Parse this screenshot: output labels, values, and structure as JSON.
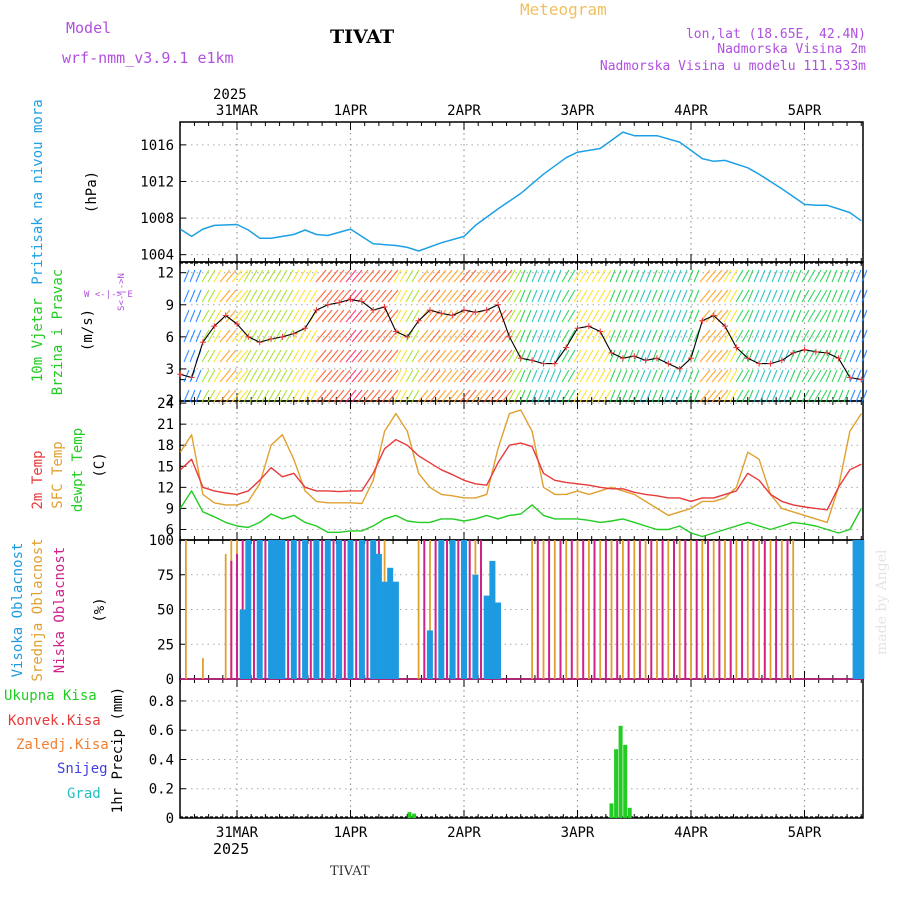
{
  "header": {
    "model_label": "Model",
    "model_name": "wrf-nmm_v3.9.1 e1km",
    "station": "TIVAT",
    "title": "Meteogram",
    "coords": "lon,lat (18.65E, 42.4N)",
    "elevation": "Nadmorska Visina 2m",
    "elevation_model": "Nadmorska Visina u modelu 111.533m",
    "footer_station": "TIVAT",
    "watermark": "made by Angel"
  },
  "time_axis": {
    "year": "2025",
    "labels": [
      "31MAR",
      "1APR",
      "2APR",
      "3APR",
      "4APR",
      "5APR"
    ]
  },
  "colors": {
    "pressure": "#1ea0e6",
    "temp2m": "#e83a3a",
    "sfc_temp": "#e0a030",
    "dewpoint": "#22cc22",
    "cloud_high": "#1e9be0",
    "cloud_mid": "#e0a030",
    "cloud_low": "#d0208a",
    "precip_total": "#22cc22",
    "wind_label": "#22cc22",
    "violet": "#b050e0"
  },
  "chart_data": [
    {
      "type": "line",
      "panel": "pressure",
      "ylabel": "Pritisak na nivou mora",
      "unit": "(hPa)",
      "yticks": [
        "1004",
        "1008",
        "1012",
        "1016"
      ],
      "ylim": [
        1003.2,
        1018.5
      ],
      "x_days": [
        -0.5,
        -0.4,
        -0.3,
        -0.2,
        0.0,
        0.1,
        0.2,
        0.3,
        0.5,
        0.6,
        0.7,
        0.8,
        1.0,
        1.2,
        1.4,
        1.5,
        1.6,
        1.8,
        2.0,
        2.1,
        2.3,
        2.5,
        2.7,
        2.9,
        3.0,
        3.2,
        3.4,
        3.5,
        3.7,
        3.9,
        4.0,
        4.1,
        4.2,
        4.3,
        4.5,
        4.6,
        4.8,
        5.0,
        5.1,
        5.2,
        5.3,
        5.4,
        5.5
      ],
      "series": [
        {
          "name": "Pritisak na nivou mora",
          "values": [
            1006.8,
            1006.0,
            1006.8,
            1007.2,
            1007.3,
            1006.7,
            1005.8,
            1005.8,
            1006.2,
            1006.7,
            1006.2,
            1006.1,
            1006.8,
            1005.2,
            1005.0,
            1004.8,
            1004.4,
            1005.3,
            1006.0,
            1007.2,
            1009.0,
            1010.7,
            1012.8,
            1014.6,
            1015.2,
            1015.6,
            1017.4,
            1017.0,
            1017.0,
            1016.3,
            1015.4,
            1014.5,
            1014.2,
            1014.3,
            1013.5,
            1012.8,
            1011.2,
            1009.5,
            1009.4,
            1009.4,
            1009.0,
            1008.6,
            1007.7
          ]
        }
      ]
    },
    {
      "type": "line",
      "panel": "wind",
      "ylabel": "10m Vjetar",
      "ylabel2": "Brzina i Pravac",
      "unit": "(m/s)",
      "compass": "W <-|-> E",
      "compass_v": "S<-|->N",
      "yticks": [
        "2",
        "3",
        "6",
        "9",
        "12"
      ],
      "ylim": [
        0,
        13
      ],
      "x_days": [
        -0.5,
        -0.4,
        -0.3,
        -0.2,
        -0.1,
        0.0,
        0.1,
        0.2,
        0.3,
        0.4,
        0.5,
        0.6,
        0.7,
        0.8,
        0.9,
        1.0,
        1.1,
        1.2,
        1.3,
        1.4,
        1.5,
        1.6,
        1.7,
        1.8,
        1.9,
        2.0,
        2.1,
        2.2,
        2.3,
        2.4,
        2.5,
        2.6,
        2.7,
        2.8,
        2.9,
        3.0,
        3.1,
        3.2,
        3.3,
        3.4,
        3.5,
        3.6,
        3.7,
        3.8,
        3.9,
        4.0,
        4.1,
        4.2,
        4.3,
        4.4,
        4.5,
        4.6,
        4.7,
        4.8,
        4.9,
        5.0,
        5.1,
        5.2,
        5.3,
        5.4,
        5.5
      ],
      "series": [
        {
          "name": "wind speed",
          "values": [
            2.5,
            2.2,
            5.5,
            7.0,
            8.0,
            7.2,
            6.0,
            5.5,
            5.8,
            6.0,
            6.3,
            6.8,
            8.5,
            9.0,
            9.2,
            9.5,
            9.3,
            8.5,
            8.8,
            6.5,
            6.0,
            7.5,
            8.5,
            8.2,
            8.0,
            8.5,
            8.3,
            8.5,
            9.0,
            6.0,
            4.0,
            3.8,
            3.5,
            3.5,
            5.0,
            6.8,
            7.0,
            6.5,
            4.5,
            4.0,
            4.2,
            3.8,
            4.0,
            3.5,
            3.0,
            4.0,
            7.5,
            8.0,
            7.0,
            5.0,
            4.0,
            3.5,
            3.5,
            3.8,
            4.5,
            4.8,
            4.6,
            4.5,
            4.0,
            2.2,
            2.0
          ]
        }
      ]
    },
    {
      "type": "line",
      "panel": "temperature",
      "ylabel": "2m Temp",
      "ylabel2": "SFC Temp",
      "ylabel3": "dewpt Temp",
      "unit": "(C)",
      "yticks": [
        "6",
        "9",
        "12",
        "15",
        "18",
        "21",
        "24"
      ],
      "ylim": [
        4.5,
        24.3
      ],
      "x_days": [
        -0.5,
        -0.4,
        -0.3,
        -0.2,
        -0.1,
        0.0,
        0.1,
        0.2,
        0.3,
        0.4,
        0.5,
        0.6,
        0.7,
        0.8,
        0.9,
        1.0,
        1.1,
        1.2,
        1.3,
        1.4,
        1.5,
        1.6,
        1.7,
        1.8,
        1.9,
        2.0,
        2.1,
        2.2,
        2.3,
        2.4,
        2.5,
        2.6,
        2.7,
        2.8,
        2.9,
        3.0,
        3.1,
        3.2,
        3.3,
        3.4,
        3.5,
        3.6,
        3.7,
        3.8,
        3.9,
        4.0,
        4.1,
        4.2,
        4.3,
        4.4,
        4.5,
        4.6,
        4.7,
        4.8,
        4.9,
        5.0,
        5.1,
        5.2,
        5.3,
        5.4,
        5.5
      ],
      "series": [
        {
          "name": "2m Temp",
          "values": [
            14.5,
            16.0,
            12.0,
            11.5,
            11.2,
            11.0,
            11.5,
            13.0,
            14.8,
            13.5,
            14.0,
            12.0,
            11.5,
            11.5,
            11.4,
            11.5,
            11.5,
            14.0,
            17.5,
            18.8,
            18.0,
            16.5,
            15.5,
            14.5,
            13.8,
            13.0,
            12.5,
            12.3,
            15.5,
            18.0,
            18.3,
            17.8,
            14.0,
            13.0,
            12.7,
            12.5,
            12.3,
            12.0,
            11.8,
            11.8,
            11.3,
            11.0,
            10.8,
            10.5,
            10.5,
            10.0,
            10.5,
            10.5,
            11.0,
            11.5,
            14.0,
            13.0,
            11.0,
            10.0,
            9.5,
            9.2,
            9.0,
            8.8,
            12.0,
            14.5,
            15.3
          ]
        },
        {
          "name": "SFC Temp",
          "values": [
            17.0,
            19.5,
            11.0,
            9.8,
            9.5,
            9.5,
            10.0,
            12.5,
            18.0,
            19.5,
            16.0,
            11.5,
            10.0,
            9.8,
            9.8,
            9.8,
            9.7,
            13.0,
            20.0,
            22.5,
            20.0,
            14.0,
            12.0,
            11.0,
            10.8,
            10.5,
            10.5,
            11.0,
            17.5,
            22.5,
            23.0,
            20.0,
            12.0,
            11.0,
            11.0,
            11.5,
            11.0,
            11.5,
            12.0,
            11.5,
            11.0,
            10.0,
            9.0,
            8.0,
            8.5,
            9.0,
            10.0,
            10.0,
            10.5,
            12.0,
            17.0,
            16.0,
            11.0,
            9.0,
            8.5,
            8.0,
            7.5,
            7.0,
            12.0,
            20.0,
            22.5
          ]
        },
        {
          "name": "dewpt Temp",
          "values": [
            9.0,
            11.5,
            8.5,
            7.8,
            7.0,
            6.5,
            6.3,
            7.0,
            8.2,
            7.5,
            8.0,
            7.0,
            6.5,
            5.6,
            5.6,
            5.8,
            5.8,
            6.5,
            7.5,
            8.0,
            7.2,
            7.0,
            7.0,
            7.5,
            7.5,
            7.2,
            7.5,
            8.0,
            7.5,
            8.0,
            8.2,
            9.5,
            8.0,
            7.5,
            7.5,
            7.5,
            7.3,
            7.0,
            7.2,
            7.5,
            7.0,
            6.5,
            6.0,
            6.0,
            6.5,
            5.5,
            5.0,
            5.5,
            6.0,
            6.5,
            7.0,
            6.5,
            6.0,
            6.5,
            7.0,
            6.8,
            6.5,
            6.0,
            5.5,
            6.0,
            9.0
          ]
        }
      ]
    },
    {
      "type": "bar",
      "panel": "clouds",
      "ylabel": "Visoka Oblacnost",
      "ylabel2": "Srednja Oblacnost",
      "ylabel3": "Niska Oblacnost",
      "unit": "(%)",
      "yticks": [
        "0",
        "25",
        "50",
        "75",
        "100"
      ],
      "ylim": [
        0,
        100
      ],
      "series": [
        {
          "name": "Visoka Oblacnost",
          "x_days": [
            0.05,
            0.1,
            0.2,
            0.3,
            0.35,
            0.4,
            0.5,
            0.6,
            0.7,
            0.8,
            0.9,
            1.0,
            1.1,
            1.2,
            1.25,
            1.3,
            1.35,
            1.4,
            1.7,
            1.8,
            1.9,
            2.0,
            2.1,
            2.2,
            2.25,
            2.3,
            5.45,
            5.5
          ],
          "values": [
            50,
            100,
            100,
            100,
            100,
            100,
            100,
            100,
            100,
            100,
            100,
            100,
            100,
            100,
            90,
            70,
            80,
            70,
            35,
            100,
            100,
            100,
            75,
            60,
            85,
            55,
            100,
            100
          ]
        },
        {
          "name": "Srednja Oblacnost",
          "x_days": [
            -0.45,
            -0.3,
            -0.1,
            -0.05,
            0.0,
            0.1,
            0.2,
            0.3,
            0.4,
            0.5,
            0.6,
            0.7,
            0.8,
            0.9,
            1.0,
            1.1,
            1.2,
            1.3,
            1.6,
            1.7,
            1.8,
            1.9,
            2.0,
            2.1,
            2.6,
            2.7,
            2.8,
            2.9,
            3.0,
            3.1,
            3.2,
            3.3,
            3.4,
            3.5,
            3.6,
            3.7,
            3.8,
            3.9,
            4.0,
            4.1,
            4.2,
            4.3,
            4.4,
            4.5,
            4.6,
            4.7,
            4.8,
            4.9,
            5.5
          ],
          "values": [
            100,
            15,
            90,
            100,
            100,
            100,
            100,
            100,
            100,
            100,
            100,
            100,
            100,
            100,
            100,
            100,
            100,
            100,
            100,
            100,
            100,
            100,
            100,
            100,
            100,
            100,
            100,
            100,
            100,
            100,
            100,
            100,
            100,
            100,
            100,
            100,
            100,
            100,
            100,
            100,
            100,
            100,
            100,
            100,
            100,
            100,
            100,
            100,
            75
          ]
        },
        {
          "name": "Niska Oblacnost",
          "x_days": [
            -0.05,
            0.0,
            0.05,
            0.15,
            0.25,
            0.35,
            0.45,
            0.55,
            0.65,
            0.75,
            0.85,
            0.95,
            1.05,
            1.15,
            1.25,
            1.65,
            1.75,
            1.85,
            1.95,
            2.05,
            2.15,
            2.65,
            2.75,
            2.85,
            2.95,
            3.05,
            3.15,
            3.25,
            3.35,
            3.45,
            3.55,
            3.65,
            3.75,
            3.85,
            3.95,
            4.05,
            4.15,
            4.25,
            4.35,
            4.45,
            4.55,
            4.65,
            4.75,
            4.85
          ],
          "values": [
            85,
            90,
            100,
            100,
            100,
            100,
            100,
            100,
            100,
            100,
            100,
            100,
            100,
            100,
            100,
            100,
            100,
            100,
            100,
            100,
            100,
            100,
            100,
            100,
            100,
            100,
            100,
            100,
            100,
            100,
            100,
            100,
            100,
            100,
            100,
            100,
            100,
            100,
            100,
            100,
            100,
            100,
            100,
            100
          ]
        }
      ]
    },
    {
      "type": "bar",
      "panel": "precipitation",
      "ylabel": "1hr Precip",
      "unit": "(mm)",
      "legend": [
        "Ukupna Kisa",
        "Konvek.Kisa",
        "Zaledj.Kisa",
        "Snijeg",
        "Grad"
      ],
      "yticks": [
        "0",
        "0.2",
        "0.4",
        "0.6",
        "0.8"
      ],
      "ylim": [
        0,
        0.95
      ],
      "series": [
        {
          "name": "Ukupna Kisa",
          "x_days": [
            1.52,
            1.56,
            3.3,
            3.34,
            3.38,
            3.42,
            3.46
          ],
          "values": [
            0.04,
            0.03,
            0.1,
            0.47,
            0.63,
            0.5,
            0.07
          ]
        }
      ]
    }
  ]
}
